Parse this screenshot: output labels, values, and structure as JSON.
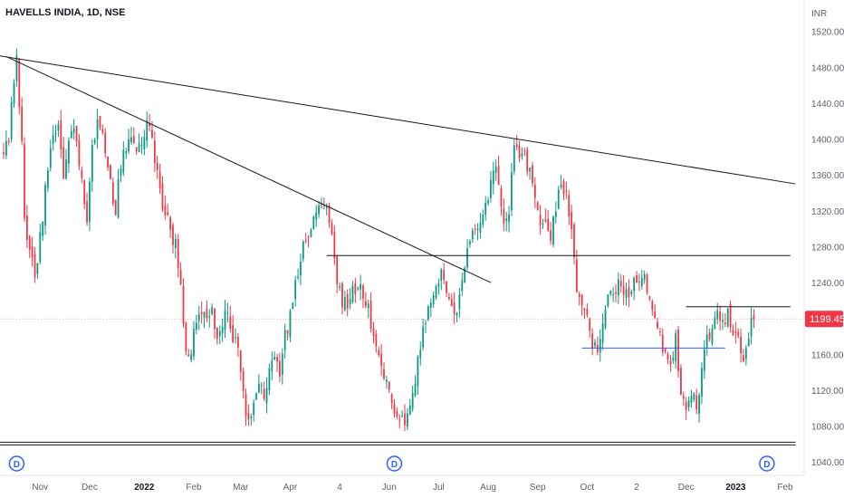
{
  "header": {
    "symbol": "HAVELLS INDIA, 1D, NSE",
    "currency": "INR"
  },
  "chart_data": {
    "type": "candlestick",
    "ylim": [
      1025,
      1555
    ],
    "y_ticks": [
      1040,
      1080,
      1120,
      1160,
      1200,
      1240,
      1280,
      1320,
      1360,
      1400,
      1440,
      1480,
      1520
    ],
    "y_tick_labels": [
      "1040.00",
      "1080.00",
      "1120.00",
      "1160.00",
      "1200.00",
      "1240.00",
      "1280.00",
      "1320.00",
      "1360.00",
      "1400.00",
      "1440.00",
      "1480.00",
      "1520.00"
    ],
    "x_range": [
      0,
      300
    ],
    "x_ticks": [
      {
        "label": "Nov",
        "x": 14,
        "bold": false
      },
      {
        "label": "Dec",
        "x": 33,
        "bold": false
      },
      {
        "label": "2022",
        "x": 54,
        "bold": true
      },
      {
        "label": "Feb",
        "x": 73,
        "bold": false
      },
      {
        "label": "Mar",
        "x": 91,
        "bold": false
      },
      {
        "label": "Apr",
        "x": 110,
        "bold": false
      },
      {
        "label": "4",
        "x": 129,
        "bold": false
      },
      {
        "label": "Jun",
        "x": 148,
        "bold": false
      },
      {
        "label": "Jul",
        "x": 167,
        "bold": false
      },
      {
        "label": "Aug",
        "x": 186,
        "bold": false
      },
      {
        "label": "Sep",
        "x": 205,
        "bold": false
      },
      {
        "label": "Oct",
        "x": 224,
        "bold": false
      },
      {
        "label": "2",
        "x": 243,
        "bold": false
      },
      {
        "label": "Dec",
        "x": 262,
        "bold": false
      },
      {
        "label": "2023",
        "x": 281,
        "bold": true
      },
      {
        "label": "Feb",
        "x": 300,
        "bold": false
      }
    ],
    "anchors": [
      [
        0,
        1380
      ],
      [
        2,
        1400
      ],
      [
        4,
        1465
      ],
      [
        5,
        1490
      ],
      [
        7,
        1390
      ],
      [
        8,
        1310
      ],
      [
        10,
        1270
      ],
      [
        12,
        1250
      ],
      [
        14,
        1290
      ],
      [
        16,
        1340
      ],
      [
        18,
        1390
      ],
      [
        21,
        1410
      ],
      [
        23,
        1360
      ],
      [
        26,
        1415
      ],
      [
        28,
        1395
      ],
      [
        30,
        1355
      ],
      [
        32,
        1305
      ],
      [
        34,
        1385
      ],
      [
        36,
        1420
      ],
      [
        38,
        1400
      ],
      [
        40,
        1360
      ],
      [
        43,
        1320
      ],
      [
        45,
        1375
      ],
      [
        47,
        1395
      ],
      [
        49,
        1400
      ],
      [
        51,
        1385
      ],
      [
        53,
        1400
      ],
      [
        55,
        1420
      ],
      [
        57,
        1395
      ],
      [
        59,
        1360
      ],
      [
        61,
        1330
      ],
      [
        63,
        1310
      ],
      [
        66,
        1280
      ],
      [
        68,
        1230
      ],
      [
        70,
        1170
      ],
      [
        72,
        1160
      ],
      [
        74,
        1200
      ],
      [
        76,
        1210
      ],
      [
        78,
        1205
      ],
      [
        80,
        1210
      ],
      [
        82,
        1170
      ],
      [
        84,
        1195
      ],
      [
        86,
        1210
      ],
      [
        88,
        1180
      ],
      [
        90,
        1175
      ],
      [
        92,
        1110
      ],
      [
        94,
        1080
      ],
      [
        96,
        1105
      ],
      [
        98,
        1120
      ],
      [
        100,
        1115
      ],
      [
        102,
        1140
      ],
      [
        104,
        1160
      ],
      [
        106,
        1140
      ],
      [
        108,
        1180
      ],
      [
        110,
        1200
      ],
      [
        112,
        1240
      ],
      [
        114,
        1270
      ],
      [
        116,
        1285
      ],
      [
        118,
        1300
      ],
      [
        120,
        1315
      ],
      [
        122,
        1330
      ],
      [
        124,
        1320
      ],
      [
        126,
        1290
      ],
      [
        128,
        1240
      ],
      [
        130,
        1220
      ],
      [
        132,
        1210
      ],
      [
        134,
        1230
      ],
      [
        136,
        1240
      ],
      [
        138,
        1230
      ],
      [
        140,
        1210
      ],
      [
        142,
        1180
      ],
      [
        144,
        1160
      ],
      [
        146,
        1140
      ],
      [
        148,
        1120
      ],
      [
        150,
        1100
      ],
      [
        152,
        1085
      ],
      [
        154,
        1090
      ],
      [
        156,
        1100
      ],
      [
        158,
        1130
      ],
      [
        160,
        1170
      ],
      [
        162,
        1200
      ],
      [
        164,
        1220
      ],
      [
        166,
        1240
      ],
      [
        168,
        1250
      ],
      [
        170,
        1235
      ],
      [
        172,
        1220
      ],
      [
        174,
        1205
      ],
      [
        176,
        1240
      ],
      [
        178,
        1275
      ],
      [
        180,
        1290
      ],
      [
        182,
        1300
      ],
      [
        184,
        1310
      ],
      [
        186,
        1340
      ],
      [
        188,
        1370
      ],
      [
        190,
        1350
      ],
      [
        192,
        1300
      ],
      [
        194,
        1320
      ],
      [
        196,
        1390
      ],
      [
        198,
        1385
      ],
      [
        200,
        1380
      ],
      [
        202,
        1360
      ],
      [
        204,
        1330
      ],
      [
        206,
        1300
      ],
      [
        208,
        1310
      ],
      [
        210,
        1295
      ],
      [
        212,
        1320
      ],
      [
        214,
        1350
      ],
      [
        216,
        1340
      ],
      [
        218,
        1300
      ],
      [
        220,
        1230
      ],
      [
        222,
        1220
      ],
      [
        224,
        1210
      ],
      [
        226,
        1175
      ],
      [
        228,
        1170
      ],
      [
        230,
        1200
      ],
      [
        232,
        1225
      ],
      [
        234,
        1230
      ],
      [
        236,
        1235
      ],
      [
        238,
        1220
      ],
      [
        240,
        1230
      ],
      [
        242,
        1245
      ],
      [
        244,
        1240
      ],
      [
        246,
        1250
      ],
      [
        248,
        1225
      ],
      [
        250,
        1200
      ],
      [
        252,
        1180
      ],
      [
        254,
        1160
      ],
      [
        256,
        1150
      ],
      [
        258,
        1175
      ],
      [
        260,
        1120
      ],
      [
        262,
        1100
      ],
      [
        264,
        1115
      ],
      [
        266,
        1105
      ],
      [
        268,
        1140
      ],
      [
        270,
        1175
      ],
      [
        272,
        1190
      ],
      [
        274,
        1200
      ],
      [
        276,
        1195
      ],
      [
        278,
        1205
      ],
      [
        280,
        1190
      ],
      [
        282,
        1175
      ],
      [
        284,
        1160
      ],
      [
        286,
        1185
      ],
      [
        288,
        1199.45
      ]
    ],
    "last_price": {
      "label": "1199.45",
      "value": 1199.45,
      "color": "#f23645"
    },
    "events": [
      {
        "label": "D",
        "x": 5
      },
      {
        "label": "D",
        "x": 150
      },
      {
        "label": "D",
        "x": 293
      }
    ],
    "trendlines": [
      {
        "from": [
          -2,
          1493
        ],
        "to": [
          304,
          1350
        ],
        "color": "#131722"
      },
      {
        "from": [
          1,
          1492
        ],
        "to": [
          187,
          1240
        ],
        "color": "#131722"
      }
    ],
    "hlines": [
      {
        "y": 1270,
        "x_from": 124,
        "x_to": 302,
        "color": "#131722"
      },
      {
        "y": 1213,
        "x_from": 262,
        "x_to": 302,
        "color": "#131722"
      },
      {
        "y": 1167,
        "x_from": 222,
        "x_to": 277,
        "color": "#2962ff"
      },
      {
        "y": 1062,
        "x_from": -2,
        "x_to": 304,
        "color": "#131722"
      },
      {
        "y": 1059,
        "x_from": -2,
        "x_to": 304,
        "color": "#131722"
      }
    ],
    "colors": {
      "up": "#089981",
      "down": "#f23645",
      "event": "#2962ff",
      "text": "#131722",
      "axis_text": "#5d606b"
    }
  }
}
